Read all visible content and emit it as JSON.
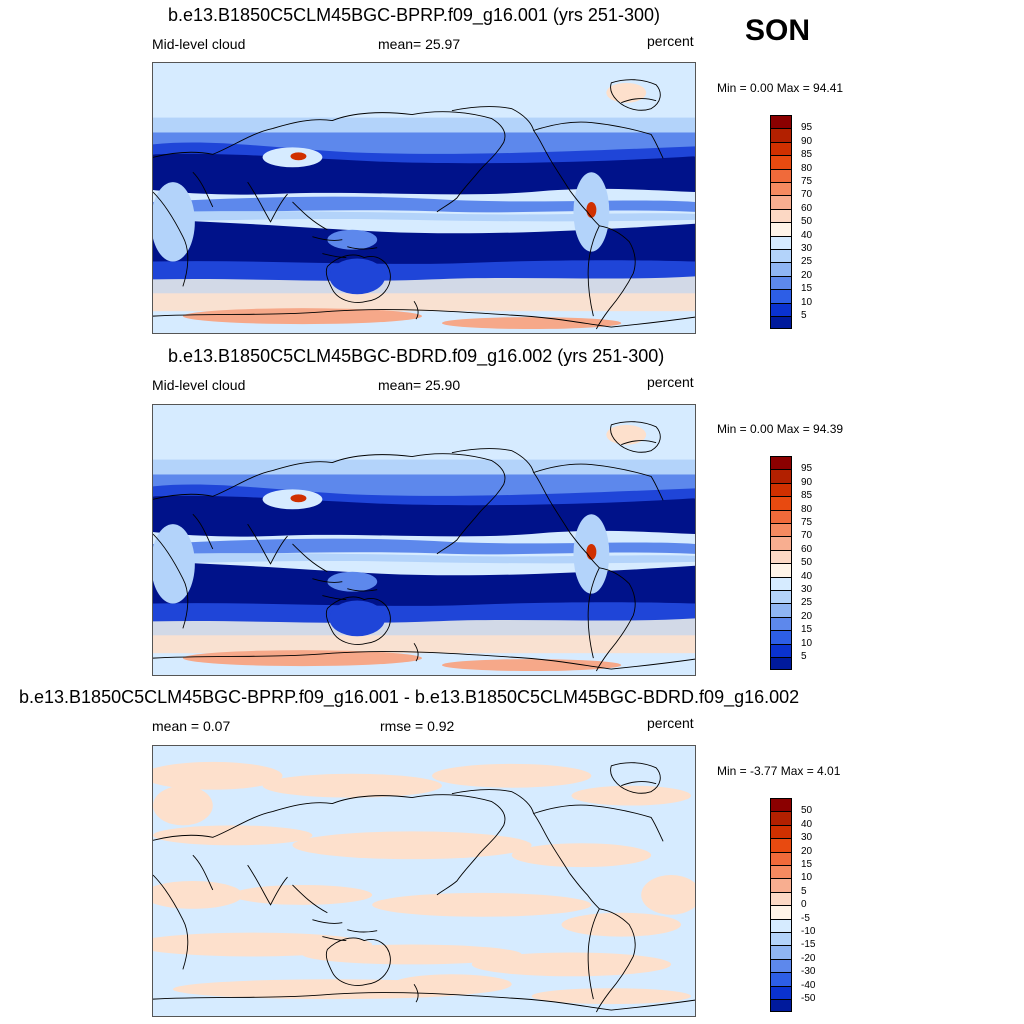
{
  "season": "SON",
  "panels": [
    {
      "title": "b.e13.B1850C5CLM45BGC-BPRP.f09_g16.001 (yrs 251-300)",
      "left_label": "Mid-level cloud",
      "center_label": "mean=  25.97",
      "right_label": "percent",
      "minmax": "Min =    0.00 Max =  94.41",
      "kind": "field"
    },
    {
      "title": "b.e13.B1850C5CLM45BGC-BDRD.f09_g16.002 (yrs 251-300)",
      "left_label": "Mid-level cloud",
      "center_label": "mean=  25.90",
      "right_label": "percent",
      "minmax": "Min =    0.00 Max =  94.39",
      "kind": "field"
    },
    {
      "title": "b.e13.B1850C5CLM45BGC-BPRP.f09_g16.001 - b.e13.B1850C5CLM45BGC-BDRD.f09_g16.002",
      "left_label": "mean =   0.07",
      "center_label": "rmse =   0.92",
      "right_label": "percent",
      "minmax": "Min =  -3.77 Max =   4.01",
      "kind": "diff"
    }
  ],
  "colorbar_field": {
    "labels": [
      "95",
      "90",
      "85",
      "80",
      "75",
      "70",
      "60",
      "50",
      "40",
      "30",
      "25",
      "20",
      "15",
      "10",
      "5"
    ],
    "colors": [
      "#8b0000",
      "#b22000",
      "#d03000",
      "#e84a10",
      "#f06a3a",
      "#f58a60",
      "#f8ae90",
      "#fcd8c4",
      "#fff4e8",
      "#d6ebff",
      "#b3d3fa",
      "#8fb5f3",
      "#5d88ec",
      "#2d5ee6",
      "#0a32d0",
      "#001a9c"
    ]
  },
  "colorbar_diff": {
    "labels": [
      "50",
      "40",
      "30",
      "20",
      "15",
      "10",
      "5",
      "0",
      "-5",
      "-10",
      "-15",
      "-20",
      "-30",
      "-40",
      "-50"
    ],
    "colors": [
      "#8b0000",
      "#b22000",
      "#d03000",
      "#e84a10",
      "#f06a3a",
      "#f58a60",
      "#f8ae90",
      "#fcd8c4",
      "#fff4e8",
      "#d6ebff",
      "#b3d3fa",
      "#8fb5f3",
      "#5d88ec",
      "#2d5ee6",
      "#0a32d0",
      "#001a9c"
    ]
  },
  "map_colors": {
    "darkblue": "#00128a",
    "blue": "#1f45d8",
    "midblue": "#5d88ec",
    "lightblue": "#b3d3fa",
    "paleblue": "#d6ebff",
    "peach": "#fde0cc",
    "salmon": "#f6a889",
    "red": "#d03000"
  }
}
